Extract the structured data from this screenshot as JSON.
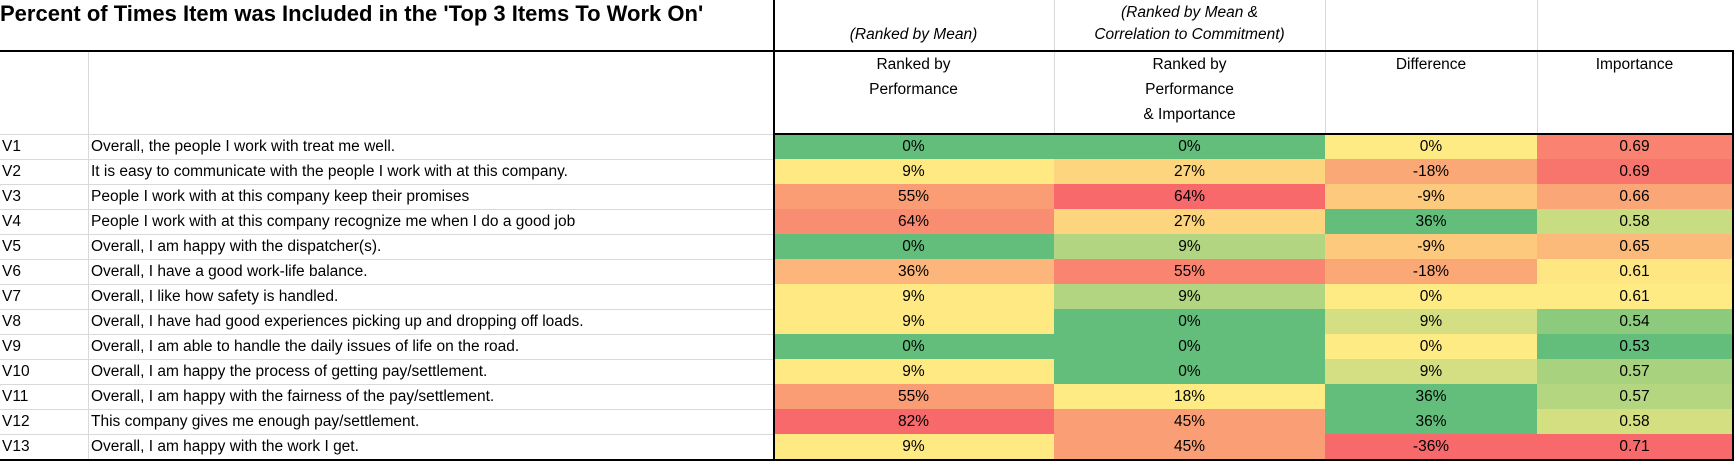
{
  "title": "Percent of Times Item was Included in the 'Top 3 Items To Work On'",
  "subheaders": {
    "mean": "(Ranked by Mean)",
    "mean_corr_line1": "(Ranked by Mean &",
    "mean_corr_line2": "Correlation to Commitment)"
  },
  "columns": {
    "perf": [
      "Ranked by",
      "Performance"
    ],
    "perf_imp": [
      "Ranked by",
      "Performance",
      "& Importance"
    ],
    "diff": [
      "Difference"
    ],
    "importance": [
      "Importance"
    ]
  },
  "rows": [
    {
      "id": "V1",
      "item": "Overall, the people I work with treat me well.",
      "perf": "0%",
      "perf_imp": "0%",
      "diff": "0%",
      "importance": "0.69"
    },
    {
      "id": "V2",
      "item": "It is easy to communicate with the people I work with at this company.",
      "perf": "9%",
      "perf_imp": "27%",
      "diff": "-18%",
      "importance": "0.69"
    },
    {
      "id": "V3",
      "item": "People I work with at this company keep their promises",
      "perf": "55%",
      "perf_imp": "64%",
      "diff": "-9%",
      "importance": "0.66"
    },
    {
      "id": "V4",
      "item": "People I work with at this company recognize me when I do a good job",
      "perf": "64%",
      "perf_imp": "27%",
      "diff": "36%",
      "importance": "0.58"
    },
    {
      "id": "V5",
      "item": "Overall, I am happy with the dispatcher(s).",
      "perf": "0%",
      "perf_imp": "9%",
      "diff": "-9%",
      "importance": "0.65"
    },
    {
      "id": "V6",
      "item": "Overall, I have a good work-life balance.",
      "perf": "36%",
      "perf_imp": "55%",
      "diff": "-18%",
      "importance": "0.61"
    },
    {
      "id": "V7",
      "item": "Overall, I like how safety is handled.",
      "perf": "9%",
      "perf_imp": "9%",
      "diff": "0%",
      "importance": "0.61"
    },
    {
      "id": "V8",
      "item": "Overall, I have had good experiences picking up and dropping off loads.",
      "perf": "9%",
      "perf_imp": "0%",
      "diff": "9%",
      "importance": "0.54"
    },
    {
      "id": "V9",
      "item": "Overall, I am able to handle the daily issues of life on the road.",
      "perf": "0%",
      "perf_imp": "0%",
      "diff": "0%",
      "importance": "0.53"
    },
    {
      "id": "V10",
      "item": "Overall, I am happy the process of getting pay/settlement.",
      "perf": "9%",
      "perf_imp": "0%",
      "diff": "9%",
      "importance": "0.57"
    },
    {
      "id": "V11",
      "item": "Overall, I am happy with the fairness of the pay/settlement.",
      "perf": "55%",
      "perf_imp": "18%",
      "diff": "36%",
      "importance": "0.57"
    },
    {
      "id": "V12",
      "item": "This company gives me enough pay/settlement.",
      "perf": "82%",
      "perf_imp": "45%",
      "diff": "36%",
      "importance": "0.58"
    },
    {
      "id": "V13",
      "item": "Overall, I am happy with the work I get.",
      "perf": "9%",
      "perf_imp": "45%",
      "diff": "-36%",
      "importance": "0.71"
    }
  ],
  "cell_colors": {
    "perf": [
      "#63be7b",
      "#fee983",
      "#fa9d75",
      "#f98d72",
      "#63be7b",
      "#fcb57a",
      "#fee983",
      "#fee983",
      "#63be7b",
      "#fee983",
      "#fa9d75",
      "#f8696b",
      "#fee983"
    ],
    "perf_imp": [
      "#63be7b",
      "#fdd57f",
      "#f8696b",
      "#fdd57f",
      "#b1d580",
      "#f98570",
      "#b1d580",
      "#63be7b",
      "#63be7b",
      "#63be7b",
      "#ffeb84",
      "#fa9f75",
      "#fa9f75"
    ],
    "diff": [
      "#ffeb84",
      "#fba877",
      "#fdc97d",
      "#63be7b",
      "#fdc97d",
      "#fba877",
      "#ffeb84",
      "#d3df82",
      "#ffeb84",
      "#d3df82",
      "#63be7b",
      "#63be7b",
      "#f8696b"
    ],
    "importance": [
      "#f98370",
      "#f8756e",
      "#fba677",
      "#c8dc81",
      "#fcba7a",
      "#fee683",
      "#ffeb84",
      "#8cca7e",
      "#63be7b",
      "#a9d27f",
      "#b4d680",
      "#d4df82",
      "#f8696b"
    ]
  }
}
